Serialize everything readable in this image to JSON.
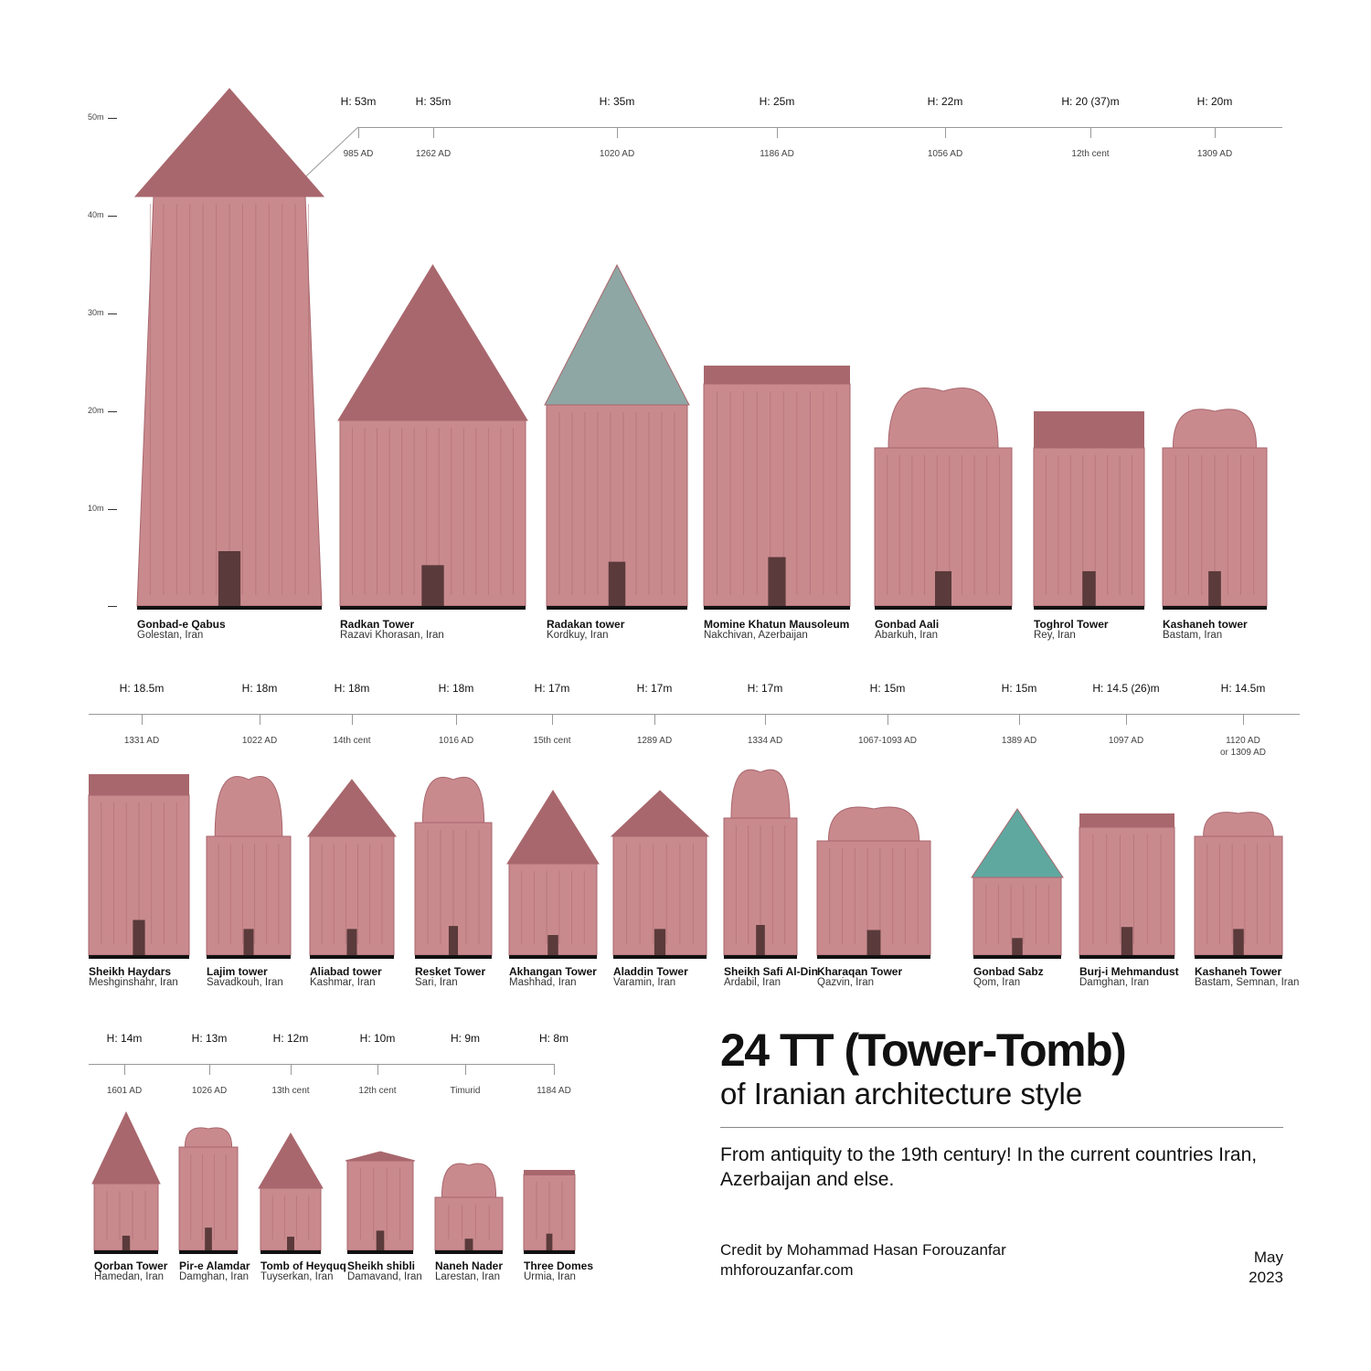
{
  "title": "24 TT (Tower-Tomb)",
  "subtitle": "of Iranian architecture style",
  "description": "From antiquity to the 19th century! In the current countries Iran, Azerbaijan and else.",
  "credit_prefix": "Credit by",
  "credit_name": "Mohammad Hasan Forouzanfar",
  "website": "mhforouzanfar.com",
  "date_month": "May",
  "date_year": "2023",
  "scale": [
    "50m",
    "40m",
    "30m",
    "20m",
    "10m"
  ],
  "colors": {
    "brick": "#c98a8e",
    "brick_dark": "#a8676d",
    "turquoise": "#5fa8a0",
    "base": "#111111"
  },
  "rows": [
    {
      "towers": [
        {
          "name": "Gonbad-e Qabus",
          "location": "Golestan, Iran",
          "height": "H: 53m",
          "date": "985 AD",
          "roof": "cone"
        },
        {
          "name": "Radkan Tower",
          "location": "Razavi Khorasan, Iran",
          "height": "H: 35m",
          "date": "1262 AD",
          "roof": "cone"
        },
        {
          "name": "Radakan tower",
          "location": "Kordkuy, Iran",
          "height": "H: 35m",
          "date": "1020 AD",
          "roof": "cone"
        },
        {
          "name": "Momine Khatun Mausoleum",
          "location": "Nakchivan, Azerbaijan",
          "height": "H: 25m",
          "date": "1186 AD",
          "roof": "flat"
        },
        {
          "name": "Gonbad Aali",
          "location": "Abarkuh, Iran",
          "height": "H: 22m",
          "date": "1056 AD",
          "roof": "dome"
        },
        {
          "name": "Toghrol Tower",
          "location": "Rey, Iran",
          "height": "H: 20 (37)m",
          "date": "12th cent",
          "roof": "flat"
        },
        {
          "name": "Kashaneh tower",
          "location": "Bastam, Iran",
          "height": "H: 20m",
          "date": "1309 AD",
          "roof": "dome"
        }
      ]
    },
    {
      "towers": [
        {
          "name": "Sheikh Haydars",
          "location": "Meshginshahr, Iran",
          "height": "H: 18.5m",
          "date": "1331 AD",
          "roof": "flat"
        },
        {
          "name": "Lajim tower",
          "location": "Savadkouh, Iran",
          "height": "H: 18m",
          "date": "1022 AD",
          "roof": "dome"
        },
        {
          "name": "Aliabad tower",
          "location": "Kashmar, Iran",
          "height": "H: 18m",
          "date": "14th cent",
          "roof": "cone"
        },
        {
          "name": "Resket Tower",
          "location": "Sari, Iran",
          "height": "H: 18m",
          "date": "1016 AD",
          "roof": "dome"
        },
        {
          "name": "Akhangan Tower",
          "location": "Mashhad, Iran",
          "height": "H: 17m",
          "date": "15th cent",
          "roof": "cone"
        },
        {
          "name": "Aladdin Tower",
          "location": "Varamin, Iran",
          "height": "H: 17m",
          "date": "1289 AD",
          "roof": "cone"
        },
        {
          "name": "Sheikh Safi Al-Din",
          "location": "Ardabil, Iran",
          "height": "H: 17m",
          "date": "1334 AD",
          "roof": "dome"
        },
        {
          "name": "Kharaqan Tower",
          "location": "Qazvin, Iran",
          "height": "H: 15m",
          "date": "1067-1093 AD",
          "roof": "dome"
        },
        {
          "name": "Gonbad Sabz",
          "location": "Qom, Iran",
          "height": "H: 15m",
          "date": "1389 AD",
          "roof": "cone"
        },
        {
          "name": "Burj-i Mehmandust",
          "location": "Damghan, Iran",
          "height": "H: 14.5 (26)m",
          "date": "1097 AD",
          "roof": "flat"
        },
        {
          "name": "Kashaneh Tower",
          "location": "Bastam, Semnan, Iran",
          "height": "H: 14.5m",
          "date": "1120 AD",
          "date2": "or 1309 AD",
          "roof": "dome"
        }
      ]
    },
    {
      "towers": [
        {
          "name": "Qorban Tower",
          "location": "Hamedan, Iran",
          "height": "H: 14m",
          "date": "1601 AD",
          "roof": "cone"
        },
        {
          "name": "Pir-e Alamdar",
          "location": "Damghan, Iran",
          "height": "H: 13m",
          "date": "1026 AD",
          "roof": "dome"
        },
        {
          "name": "Tomb of Heyquq",
          "location": "Tuyserkan, Iran",
          "height": "H: 12m",
          "date": "13th cent",
          "roof": "cone"
        },
        {
          "name": "Sheikh shibli",
          "location": "Damavand, Iran",
          "height": "H: 10m",
          "date": "12th cent",
          "roof": "cone"
        },
        {
          "name": "Naneh Nader",
          "location": "Larestan, Iran",
          "height": "H: 9m",
          "date": "Timurid",
          "roof": "dome"
        },
        {
          "name": "Three Domes",
          "location": "Urmia, Iran",
          "height": "H: 8m",
          "date": "1184 AD",
          "roof": "flat"
        }
      ]
    }
  ]
}
